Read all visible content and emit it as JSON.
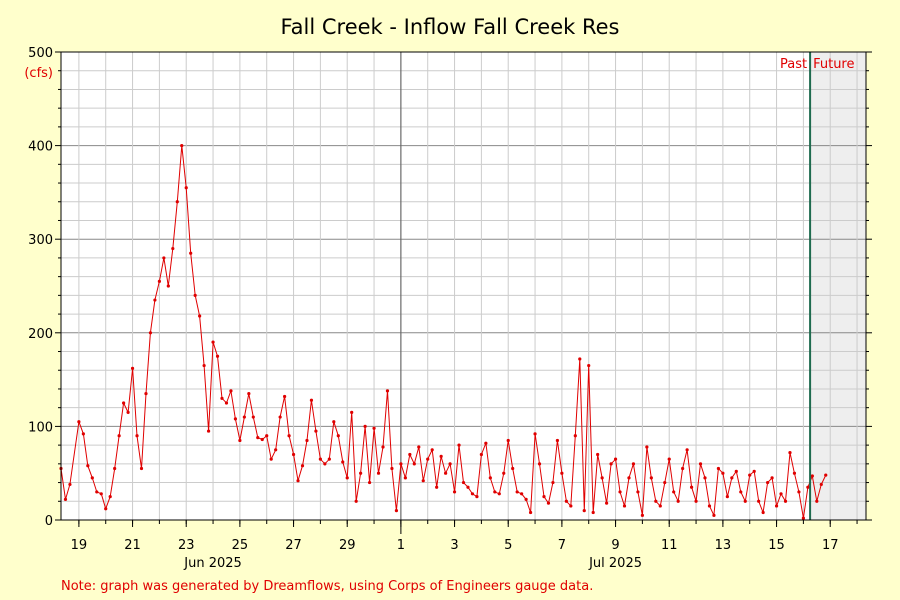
{
  "chart_data": {
    "type": "line",
    "title": "Fall Creek - Inflow Fall Creek Res",
    "ylabel": "(cfs)",
    "xlabel": "",
    "ylim": [
      0,
      500
    ],
    "y_ticks": [
      0,
      100,
      200,
      300,
      400,
      500
    ],
    "x_range_days": [
      "2025-06-18T08:00",
      "2025-07-18T08:00"
    ],
    "x_tick_labels": [
      {
        "date": "2025-06-19",
        "label": "19"
      },
      {
        "date": "2025-06-21",
        "label": "21"
      },
      {
        "date": "2025-06-23",
        "label": "23"
      },
      {
        "date": "2025-06-25",
        "label": "25"
      },
      {
        "date": "2025-06-27",
        "label": "27"
      },
      {
        "date": "2025-06-29",
        "label": "29"
      },
      {
        "date": "2025-07-01",
        "label": "1"
      },
      {
        "date": "2025-07-03",
        "label": "3"
      },
      {
        "date": "2025-07-05",
        "label": "5"
      },
      {
        "date": "2025-07-07",
        "label": "7"
      },
      {
        "date": "2025-07-09",
        "label": "9"
      },
      {
        "date": "2025-07-11",
        "label": "11"
      },
      {
        "date": "2025-07-13",
        "label": "13"
      },
      {
        "date": "2025-07-15",
        "label": "15"
      },
      {
        "date": "2025-07-17",
        "label": "17"
      }
    ],
    "month_labels": [
      {
        "date": "2025-06-24",
        "label": "Jun 2025"
      },
      {
        "date": "2025-07-09",
        "label": "Jul 2025"
      }
    ],
    "month_boundary": "2025-07-01",
    "now_marker": "2025-07-16T06:00",
    "past_label": "Past",
    "future_label": "Future",
    "grid": true,
    "series_color": "#e00000",
    "series": [
      {
        "name": "",
        "points": [
          [
            "2025-06-18T08:00",
            55
          ],
          [
            "2025-06-18T12:00",
            22
          ],
          [
            "2025-06-18T16:00",
            38
          ],
          [
            "2025-06-19T00:00",
            105
          ],
          [
            "2025-06-19T04:00",
            92
          ],
          [
            "2025-06-19T08:00",
            58
          ],
          [
            "2025-06-19T12:00",
            45
          ],
          [
            "2025-06-19T16:00",
            30
          ],
          [
            "2025-06-19T20:00",
            28
          ],
          [
            "2025-06-20T00:00",
            12
          ],
          [
            "2025-06-20T04:00",
            25
          ],
          [
            "2025-06-20T08:00",
            55
          ],
          [
            "2025-06-20T12:00",
            90
          ],
          [
            "2025-06-20T16:00",
            125
          ],
          [
            "2025-06-20T20:00",
            115
          ],
          [
            "2025-06-21T00:00",
            162
          ],
          [
            "2025-06-21T04:00",
            90
          ],
          [
            "2025-06-21T08:00",
            55
          ],
          [
            "2025-06-21T12:00",
            135
          ],
          [
            "2025-06-21T16:00",
            200
          ],
          [
            "2025-06-21T20:00",
            235
          ],
          [
            "2025-06-22T00:00",
            255
          ],
          [
            "2025-06-22T04:00",
            280
          ],
          [
            "2025-06-22T08:00",
            250
          ],
          [
            "2025-06-22T12:00",
            290
          ],
          [
            "2025-06-22T16:00",
            340
          ],
          [
            "2025-06-22T20:00",
            400
          ],
          [
            "2025-06-23T00:00",
            355
          ],
          [
            "2025-06-23T04:00",
            285
          ],
          [
            "2025-06-23T08:00",
            240
          ],
          [
            "2025-06-23T12:00",
            218
          ],
          [
            "2025-06-23T16:00",
            165
          ],
          [
            "2025-06-23T20:00",
            95
          ],
          [
            "2025-06-24T00:00",
            190
          ],
          [
            "2025-06-24T04:00",
            175
          ],
          [
            "2025-06-24T08:00",
            130
          ],
          [
            "2025-06-24T12:00",
            125
          ],
          [
            "2025-06-24T16:00",
            138
          ],
          [
            "2025-06-24T20:00",
            108
          ],
          [
            "2025-06-25T00:00",
            85
          ],
          [
            "2025-06-25T04:00",
            110
          ],
          [
            "2025-06-25T08:00",
            135
          ],
          [
            "2025-06-25T12:00",
            110
          ],
          [
            "2025-06-25T16:00",
            88
          ],
          [
            "2025-06-25T20:00",
            86
          ],
          [
            "2025-06-26T00:00",
            90
          ],
          [
            "2025-06-26T04:00",
            65
          ],
          [
            "2025-06-26T08:00",
            75
          ],
          [
            "2025-06-26T12:00",
            110
          ],
          [
            "2025-06-26T16:00",
            132
          ],
          [
            "2025-06-26T20:00",
            90
          ],
          [
            "2025-06-27T00:00",
            70
          ],
          [
            "2025-06-27T04:00",
            42
          ],
          [
            "2025-06-27T08:00",
            58
          ],
          [
            "2025-06-27T12:00",
            85
          ],
          [
            "2025-06-27T16:00",
            128
          ],
          [
            "2025-06-27T20:00",
            95
          ],
          [
            "2025-06-28T00:00",
            65
          ],
          [
            "2025-06-28T04:00",
            60
          ],
          [
            "2025-06-28T08:00",
            65
          ],
          [
            "2025-06-28T12:00",
            105
          ],
          [
            "2025-06-28T16:00",
            90
          ],
          [
            "2025-06-28T20:00",
            62
          ],
          [
            "2025-06-29T00:00",
            45
          ],
          [
            "2025-06-29T04:00",
            115
          ],
          [
            "2025-06-29T08:00",
            20
          ],
          [
            "2025-06-29T12:00",
            50
          ],
          [
            "2025-06-29T16:00",
            100
          ],
          [
            "2025-06-29T20:00",
            40
          ],
          [
            "2025-06-30T00:00",
            98
          ],
          [
            "2025-06-30T04:00",
            50
          ],
          [
            "2025-06-30T08:00",
            78
          ],
          [
            "2025-06-30T12:00",
            138
          ],
          [
            "2025-06-30T16:00",
            55
          ],
          [
            "2025-06-30T20:00",
            10
          ],
          [
            "2025-07-01T00:00",
            60
          ],
          [
            "2025-07-01T04:00",
            45
          ],
          [
            "2025-07-01T08:00",
            70
          ],
          [
            "2025-07-01T12:00",
            60
          ],
          [
            "2025-07-01T16:00",
            78
          ],
          [
            "2025-07-01T20:00",
            42
          ],
          [
            "2025-07-02T00:00",
            65
          ],
          [
            "2025-07-02T04:00",
            75
          ],
          [
            "2025-07-02T08:00",
            35
          ],
          [
            "2025-07-02T12:00",
            68
          ],
          [
            "2025-07-02T16:00",
            50
          ],
          [
            "2025-07-02T20:00",
            60
          ],
          [
            "2025-07-03T00:00",
            30
          ],
          [
            "2025-07-03T04:00",
            80
          ],
          [
            "2025-07-03T08:00",
            40
          ],
          [
            "2025-07-03T12:00",
            35
          ],
          [
            "2025-07-03T16:00",
            28
          ],
          [
            "2025-07-03T20:00",
            25
          ],
          [
            "2025-07-04T00:00",
            70
          ],
          [
            "2025-07-04T04:00",
            82
          ],
          [
            "2025-07-04T08:00",
            45
          ],
          [
            "2025-07-04T12:00",
            30
          ],
          [
            "2025-07-04T16:00",
            28
          ],
          [
            "2025-07-04T20:00",
            50
          ],
          [
            "2025-07-05T00:00",
            85
          ],
          [
            "2025-07-05T04:00",
            55
          ],
          [
            "2025-07-05T08:00",
            30
          ],
          [
            "2025-07-05T12:00",
            28
          ],
          [
            "2025-07-05T16:00",
            22
          ],
          [
            "2025-07-05T20:00",
            8
          ],
          [
            "2025-07-06T00:00",
            92
          ],
          [
            "2025-07-06T04:00",
            60
          ],
          [
            "2025-07-06T08:00",
            25
          ],
          [
            "2025-07-06T12:00",
            18
          ],
          [
            "2025-07-06T16:00",
            40
          ],
          [
            "2025-07-06T20:00",
            85
          ],
          [
            "2025-07-07T00:00",
            50
          ],
          [
            "2025-07-07T04:00",
            20
          ],
          [
            "2025-07-07T08:00",
            15
          ],
          [
            "2025-07-07T12:00",
            90
          ],
          [
            "2025-07-07T16:00",
            172
          ],
          [
            "2025-07-07T20:00",
            10
          ],
          [
            "2025-07-08T00:00",
            165
          ],
          [
            "2025-07-08T04:00",
            8
          ],
          [
            "2025-07-08T08:00",
            70
          ],
          [
            "2025-07-08T12:00",
            45
          ],
          [
            "2025-07-08T16:00",
            18
          ],
          [
            "2025-07-08T20:00",
            60
          ],
          [
            "2025-07-09T00:00",
            65
          ],
          [
            "2025-07-09T04:00",
            30
          ],
          [
            "2025-07-09T08:00",
            15
          ],
          [
            "2025-07-09T12:00",
            45
          ],
          [
            "2025-07-09T16:00",
            60
          ],
          [
            "2025-07-09T20:00",
            30
          ],
          [
            "2025-07-10T00:00",
            5
          ],
          [
            "2025-07-10T04:00",
            78
          ],
          [
            "2025-07-10T08:00",
            45
          ],
          [
            "2025-07-10T12:00",
            20
          ],
          [
            "2025-07-10T16:00",
            15
          ],
          [
            "2025-07-10T20:00",
            40
          ],
          [
            "2025-07-11T00:00",
            65
          ],
          [
            "2025-07-11T04:00",
            30
          ],
          [
            "2025-07-11T08:00",
            20
          ],
          [
            "2025-07-11T12:00",
            55
          ],
          [
            "2025-07-11T16:00",
            75
          ],
          [
            "2025-07-11T20:00",
            35
          ],
          [
            "2025-07-12T00:00",
            20
          ],
          [
            "2025-07-12T04:00",
            60
          ],
          [
            "2025-07-12T08:00",
            45
          ],
          [
            "2025-07-12T12:00",
            15
          ],
          [
            "2025-07-12T16:00",
            5
          ],
          [
            "2025-07-12T20:00",
            55
          ],
          [
            "2025-07-13T00:00",
            50
          ],
          [
            "2025-07-13T04:00",
            25
          ],
          [
            "2025-07-13T08:00",
            45
          ],
          [
            "2025-07-13T12:00",
            52
          ],
          [
            "2025-07-13T16:00",
            30
          ],
          [
            "2025-07-13T20:00",
            20
          ],
          [
            "2025-07-14T00:00",
            48
          ],
          [
            "2025-07-14T04:00",
            52
          ],
          [
            "2025-07-14T08:00",
            20
          ],
          [
            "2025-07-14T12:00",
            8
          ],
          [
            "2025-07-14T16:00",
            40
          ],
          [
            "2025-07-14T20:00",
            45
          ],
          [
            "2025-07-15T00:00",
            15
          ],
          [
            "2025-07-15T04:00",
            28
          ],
          [
            "2025-07-15T08:00",
            20
          ],
          [
            "2025-07-15T12:00",
            72
          ],
          [
            "2025-07-15T16:00",
            50
          ],
          [
            "2025-07-15T20:00",
            30
          ],
          [
            "2025-07-16T00:00",
            2
          ],
          [
            "2025-07-16T04:00",
            35
          ],
          [
            "2025-07-16T08:00",
            47
          ],
          [
            "2025-07-16T12:00",
            20
          ],
          [
            "2025-07-16T16:00",
            38
          ],
          [
            "2025-07-16T20:00",
            48
          ]
        ]
      }
    ]
  },
  "note": "Note: graph was generated by Dreamflows, using Corps of Engineers gauge data."
}
